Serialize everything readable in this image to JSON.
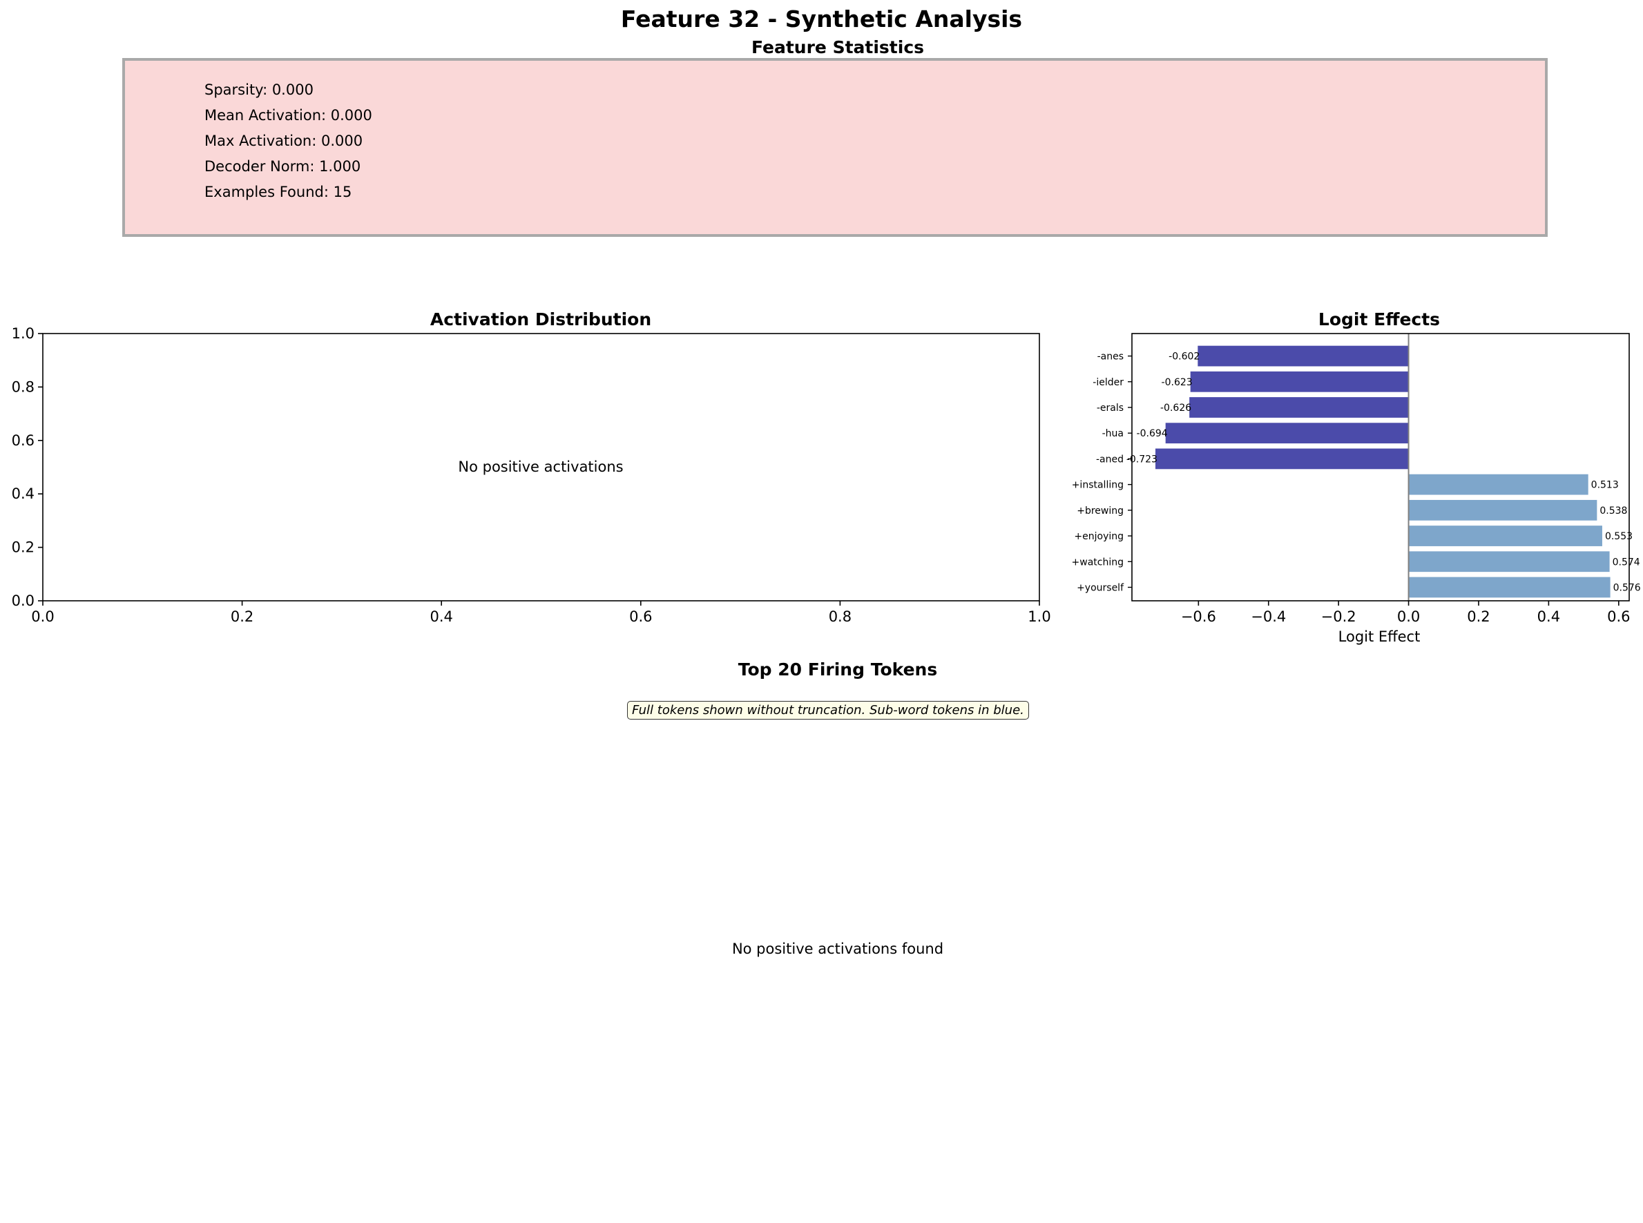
{
  "figure": {
    "title": "Feature 32 - Synthetic Analysis"
  },
  "stats_panel": {
    "title": "Feature Statistics",
    "lines": [
      "Sparsity: 0.000",
      "Mean Activation: 0.000",
      "Max Activation: 0.000",
      "Decoder Norm: 1.000",
      "Examples Found: 15"
    ],
    "background_color": "#fad8d8",
    "border_color": "#a9a9a9"
  },
  "top_tokens_panel": {
    "title": "Top 20 Firing Tokens",
    "note": "Full tokens shown without truncation. Sub-word tokens in blue.",
    "empty_message": "No positive activations found"
  },
  "chart_data": [
    {
      "type": "bar",
      "title": "Activation Distribution",
      "xlabel": "",
      "ylabel": "",
      "xlim": [
        0,
        1
      ],
      "ylim": [
        0,
        1
      ],
      "x_ticks": [
        "0.0",
        "0.2",
        "0.4",
        "0.6",
        "0.8",
        "1.0"
      ],
      "y_ticks": [
        "0.0",
        "0.2",
        "0.4",
        "0.6",
        "0.8",
        "1.0"
      ],
      "values": [],
      "annotation": "No positive activations",
      "grid": false
    },
    {
      "type": "bar",
      "orientation": "horizontal",
      "title": "Logit Effects",
      "xlabel": "Logit Effect",
      "ylabel": "",
      "xlim": [
        -0.79,
        0.63
      ],
      "x_ticks": [
        "−0.6",
        "−0.4",
        "−0.2",
        "0.0",
        "0.2",
        "0.4",
        "0.6"
      ],
      "categories": [
        "-anes",
        "-ielder",
        "-erals",
        "-hua",
        "-aned",
        "+installing",
        "+brewing",
        "+enjoying",
        "+watching",
        "+yourself"
      ],
      "values": [
        -0.602,
        -0.623,
        -0.626,
        -0.694,
        -0.723,
        0.513,
        0.538,
        0.553,
        0.574,
        0.576
      ],
      "value_labels": [
        "-0.602",
        "-0.623",
        "-0.626",
        "-0.694",
        "-0.723",
        "0.513",
        "0.538",
        "0.553",
        "0.574",
        "0.576"
      ],
      "colors": {
        "negative": "#4b4baa",
        "positive": "#7ea6cb",
        "zero_line": "#808080"
      },
      "grid": false
    }
  ]
}
